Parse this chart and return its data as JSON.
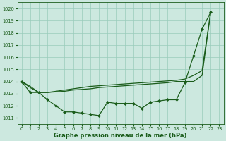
{
  "title": "Graphe pression niveau de la mer (hPa)",
  "bg_color": "#cce8df",
  "line_color": "#1a5c1a",
  "grid_color": "#99ccbb",
  "xlim": [
    -0.5,
    23.5
  ],
  "ylim": [
    1010.5,
    1020.5
  ],
  "yticks": [
    1011,
    1012,
    1013,
    1014,
    1015,
    1016,
    1017,
    1018,
    1019,
    1020
  ],
  "xticks": [
    0,
    1,
    2,
    3,
    4,
    5,
    6,
    7,
    8,
    9,
    10,
    11,
    12,
    13,
    14,
    15,
    16,
    17,
    18,
    19,
    20,
    21,
    22,
    23
  ],
  "series": [
    {
      "x": [
        0,
        1,
        2,
        3,
        4,
        5,
        6,
        7,
        8,
        9,
        10,
        11,
        12,
        13,
        14,
        15,
        16,
        17,
        18,
        19,
        20,
        21,
        22
      ],
      "y": [
        1014.0,
        1013.6,
        1013.1,
        1013.1,
        1013.15,
        1013.2,
        1013.3,
        1013.35,
        1013.4,
        1013.5,
        1013.55,
        1013.6,
        1013.65,
        1013.7,
        1013.75,
        1013.8,
        1013.85,
        1013.9,
        1014.0,
        1014.0,
        1014.0,
        1014.5,
        1019.7
      ],
      "has_markers": false
    },
    {
      "x": [
        0,
        1,
        2,
        3,
        4,
        5,
        6,
        7,
        8,
        9,
        10,
        11,
        12,
        13,
        14,
        15,
        16,
        17,
        18,
        19,
        20,
        21,
        22
      ],
      "y": [
        1014.0,
        1013.5,
        1013.1,
        1013.1,
        1013.2,
        1013.3,
        1013.4,
        1013.5,
        1013.6,
        1013.65,
        1013.7,
        1013.75,
        1013.8,
        1013.85,
        1013.9,
        1013.95,
        1014.0,
        1014.05,
        1014.1,
        1014.2,
        1014.5,
        1014.9,
        1019.7
      ],
      "has_markers": false
    },
    {
      "x": [
        0,
        1,
        2,
        3,
        4,
        5,
        6,
        7,
        8,
        9,
        10,
        11,
        12,
        13,
        14,
        15,
        16,
        17,
        18,
        19,
        20,
        21,
        22
      ],
      "y": [
        1014.0,
        1013.1,
        1013.1,
        1012.5,
        1012.0,
        1011.5,
        1011.5,
        1011.4,
        1011.3,
        1011.2,
        1012.3,
        1012.2,
        1012.2,
        1012.2,
        1011.8,
        1012.3,
        1012.4,
        1012.5,
        1012.5,
        1013.9,
        1016.1,
        1018.3,
        1019.7
      ],
      "has_markers": true
    }
  ],
  "marker": "D",
  "marker_size": 2.0,
  "line_width": 0.9,
  "xlabel_fontsize": 6.0,
  "tick_fontsize": 4.8
}
